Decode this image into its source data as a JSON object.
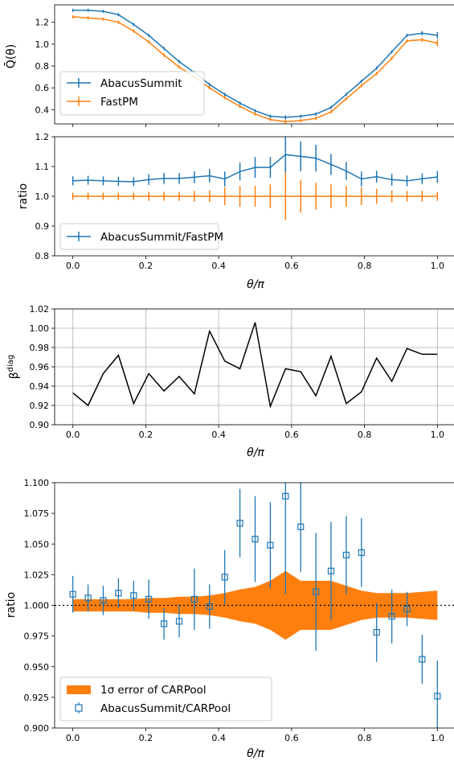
{
  "theta_axis_label": "θ/π",
  "chart_data": [
    {
      "id": "p1",
      "type": "line",
      "ylabel": "Q̄(θ)",
      "xlim": [
        -0.05,
        1.05
      ],
      "ylim": [
        0.27,
        1.36
      ],
      "xticks": [
        0.0,
        0.2,
        0.4,
        0.6,
        0.8,
        1.0
      ],
      "xtick_labels_visible": false,
      "yticks": [
        0.4,
        0.6,
        0.8,
        1.0,
        1.2
      ],
      "ytick_labels": [
        "0.4",
        "0.6",
        "0.8",
        "1.0",
        "1.2"
      ],
      "grid": false,
      "legend_position": "lower-left",
      "x": [
        0.0,
        0.0417,
        0.0833,
        0.125,
        0.1667,
        0.2083,
        0.25,
        0.2917,
        0.3333,
        0.375,
        0.4167,
        0.4583,
        0.5,
        0.5417,
        0.5833,
        0.625,
        0.6667,
        0.7083,
        0.75,
        0.7917,
        0.8333,
        0.875,
        0.9167,
        0.9583,
        1.0
      ],
      "series": [
        {
          "name": "AbacusSummit",
          "color": "#1f77b4",
          "values": [
            1.31,
            1.31,
            1.3,
            1.27,
            1.18,
            1.08,
            0.96,
            0.84,
            0.74,
            0.63,
            0.54,
            0.46,
            0.39,
            0.34,
            0.33,
            0.34,
            0.36,
            0.42,
            0.54,
            0.66,
            0.78,
            0.93,
            1.08,
            1.1,
            1.08
          ],
          "err": [
            0.015,
            0.015,
            0.015,
            0.015,
            0.015,
            0.015,
            0.015,
            0.015,
            0.015,
            0.015,
            0.015,
            0.015,
            0.015,
            0.015,
            0.02,
            0.015,
            0.015,
            0.015,
            0.015,
            0.015,
            0.015,
            0.015,
            0.015,
            0.02,
            0.03
          ]
        },
        {
          "name": "FastPM",
          "color": "#ff7f0e",
          "values": [
            1.25,
            1.24,
            1.23,
            1.2,
            1.12,
            1.02,
            0.9,
            0.79,
            0.7,
            0.6,
            0.51,
            0.43,
            0.36,
            0.31,
            0.29,
            0.3,
            0.32,
            0.38,
            0.5,
            0.62,
            0.73,
            0.87,
            1.03,
            1.04,
            1.01
          ],
          "err": [
            0.015,
            0.015,
            0.015,
            0.015,
            0.015,
            0.015,
            0.015,
            0.015,
            0.015,
            0.015,
            0.015,
            0.015,
            0.015,
            0.015,
            0.02,
            0.015,
            0.015,
            0.015,
            0.015,
            0.015,
            0.015,
            0.015,
            0.015,
            0.02,
            0.03
          ]
        }
      ]
    },
    {
      "id": "p2",
      "type": "line",
      "ylabel": "ratio",
      "xlim": [
        -0.05,
        1.05
      ],
      "ylim": [
        0.8,
        1.2
      ],
      "xticks": [
        0.0,
        0.2,
        0.4,
        0.6,
        0.8,
        1.0
      ],
      "xtick_labels": [
        "0.0",
        "0.2",
        "0.4",
        "0.6",
        "0.8",
        "1.0"
      ],
      "yticks": [
        0.8,
        0.9,
        1.0,
        1.1,
        1.2
      ],
      "ytick_labels": [
        "0.8",
        "0.9",
        "1.0",
        "1.1",
        "1.2"
      ],
      "grid": false,
      "legend_position": "lower-left",
      "x": [
        0.0,
        0.0417,
        0.0833,
        0.125,
        0.1667,
        0.2083,
        0.25,
        0.2917,
        0.3333,
        0.375,
        0.4167,
        0.4583,
        0.5,
        0.5417,
        0.5833,
        0.625,
        0.6667,
        0.7083,
        0.75,
        0.7917,
        0.8333,
        0.875,
        0.9167,
        0.9583,
        1.0
      ],
      "series": [
        {
          "name": "AbacusSummit/FastPM",
          "color": "#1f77b4",
          "values": [
            1.052,
            1.054,
            1.052,
            1.05,
            1.049,
            1.056,
            1.06,
            1.06,
            1.064,
            1.069,
            1.058,
            1.083,
            1.097,
            1.097,
            1.14,
            1.134,
            1.128,
            1.107,
            1.085,
            1.058,
            1.066,
            1.056,
            1.052,
            1.059,
            1.065
          ],
          "err": [
            0.015,
            0.015,
            0.015,
            0.015,
            0.015,
            0.018,
            0.018,
            0.018,
            0.02,
            0.022,
            0.025,
            0.03,
            0.035,
            0.035,
            0.06,
            0.05,
            0.045,
            0.035,
            0.03,
            0.025,
            0.02,
            0.02,
            0.018,
            0.018,
            0.02
          ]
        },
        {
          "color": "#ff7f0e",
          "values": [
            1.0,
            1.0,
            1.0,
            1.0,
            1.0,
            1.0,
            1.0,
            1.0,
            1.0,
            1.0,
            1.0,
            1.0,
            1.0,
            1.0,
            1.0,
            1.0,
            1.0,
            1.0,
            1.0,
            1.0,
            1.0,
            1.0,
            1.0,
            1.0,
            1.0
          ],
          "err": [
            0.012,
            0.012,
            0.012,
            0.012,
            0.012,
            0.015,
            0.015,
            0.015,
            0.018,
            0.02,
            0.03,
            0.035,
            0.035,
            0.04,
            0.08,
            0.055,
            0.045,
            0.04,
            0.035,
            0.03,
            0.025,
            0.02,
            0.018,
            0.018,
            0.015
          ]
        }
      ]
    },
    {
      "id": "p3",
      "type": "line",
      "ylabel": "β^diag",
      "xlabel": "θ/π",
      "xlim": [
        -0.05,
        1.05
      ],
      "ylim": [
        0.9,
        1.02
      ],
      "xticks": [
        0.0,
        0.2,
        0.4,
        0.6,
        0.8,
        1.0
      ],
      "xtick_labels": [
        "0.0",
        "0.2",
        "0.4",
        "0.6",
        "0.8",
        "1.0"
      ],
      "yticks": [
        0.9,
        0.92,
        0.94,
        0.96,
        0.98,
        1.0,
        1.02
      ],
      "ytick_labels": [
        "0.90",
        "0.92",
        "0.94",
        "0.96",
        "0.98",
        "1.00",
        "1.02"
      ],
      "grid": true,
      "x": [
        0.0,
        0.0417,
        0.0833,
        0.125,
        0.1667,
        0.2083,
        0.25,
        0.2917,
        0.3333,
        0.375,
        0.4167,
        0.4583,
        0.5,
        0.5417,
        0.5833,
        0.625,
        0.6667,
        0.7083,
        0.75,
        0.7917,
        0.8333,
        0.875,
        0.9167,
        0.9583,
        1.0
      ],
      "series": [
        {
          "color": "#000000",
          "values": [
            0.933,
            0.92,
            0.953,
            0.972,
            0.922,
            0.953,
            0.935,
            0.95,
            0.932,
            0.997,
            0.966,
            0.958,
            1.006,
            0.919,
            0.958,
            0.955,
            0.93,
            0.971,
            0.922,
            0.934,
            0.969,
            0.945,
            0.979,
            0.973,
            0.973
          ]
        }
      ]
    },
    {
      "id": "p4",
      "type": "scatter",
      "ylabel": "ratio",
      "xlabel": "θ/π",
      "xlim": [
        -0.05,
        1.05
      ],
      "ylim": [
        0.9,
        1.1
      ],
      "xticks": [
        0.0,
        0.2,
        0.4,
        0.6,
        0.8,
        1.0
      ],
      "xtick_labels": [
        "0.0",
        "0.2",
        "0.4",
        "0.6",
        "0.8",
        "1.0"
      ],
      "yticks": [
        0.9,
        0.925,
        0.95,
        0.975,
        1.0,
        1.025,
        1.05,
        1.075,
        1.1
      ],
      "ytick_labels": [
        "0.900",
        "0.925",
        "0.950",
        "0.975",
        "1.000",
        "1.025",
        "1.050",
        "1.075",
        "1.100"
      ],
      "grid": false,
      "legend_position": "lower-left",
      "hline": 1.0,
      "band": {
        "name": "1σ error of CARPool",
        "color": "#ff7f0e",
        "x": [
          0.0,
          0.0417,
          0.0833,
          0.125,
          0.1667,
          0.2083,
          0.25,
          0.2917,
          0.3333,
          0.375,
          0.4167,
          0.4583,
          0.5,
          0.5417,
          0.5833,
          0.625,
          0.6667,
          0.7083,
          0.75,
          0.7917,
          0.8333,
          0.875,
          0.9167,
          0.9583,
          1.0
        ],
        "halfwidth": [
          0.005,
          0.005,
          0.005,
          0.005,
          0.005,
          0.006,
          0.006,
          0.007,
          0.007,
          0.008,
          0.01,
          0.013,
          0.015,
          0.02,
          0.028,
          0.02,
          0.02,
          0.02,
          0.016,
          0.012,
          0.01,
          0.01,
          0.01,
          0.011,
          0.012
        ]
      },
      "series": [
        {
          "name": "AbacusSummit/CARPool",
          "color": "#1f77b4",
          "x": [
            0.0,
            0.0417,
            0.0833,
            0.125,
            0.1667,
            0.2083,
            0.25,
            0.2917,
            0.3333,
            0.375,
            0.4167,
            0.4583,
            0.5,
            0.5417,
            0.5833,
            0.625,
            0.6667,
            0.7083,
            0.75,
            0.7917,
            0.8333,
            0.875,
            0.9167,
            0.9583,
            1.0
          ],
          "values": [
            1.009,
            1.006,
            1.004,
            1.01,
            1.008,
            1.005,
            0.985,
            0.987,
            1.005,
            0.999,
            1.023,
            1.067,
            1.054,
            1.049,
            1.089,
            1.064,
            1.011,
            1.028,
            1.041,
            1.043,
            0.978,
            0.991,
            0.997,
            0.956,
            0.926
          ],
          "err": [
            0.015,
            0.011,
            0.012,
            0.012,
            0.012,
            0.016,
            0.013,
            0.013,
            0.025,
            0.018,
            0.022,
            0.028,
            0.035,
            0.035,
            0.08,
            0.037,
            0.048,
            0.04,
            0.032,
            0.028,
            0.024,
            0.022,
            0.014,
            0.02,
            0.029
          ]
        }
      ]
    }
  ]
}
